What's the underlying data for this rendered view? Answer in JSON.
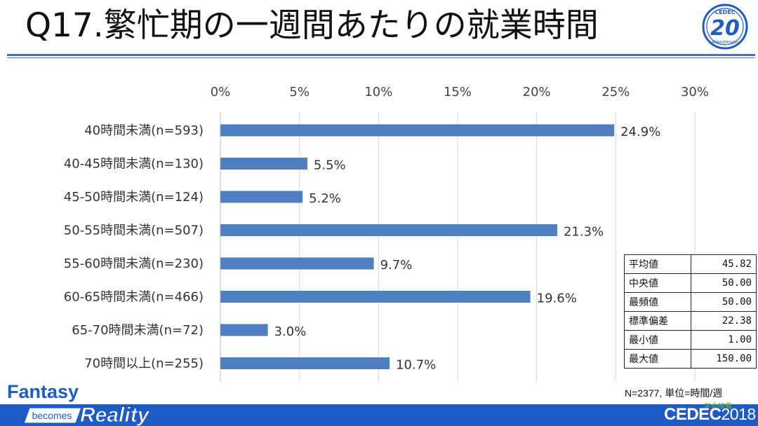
{
  "slide": {
    "title": "Q17.繁忙期の一週間あたりの就業時間",
    "logo20": {
      "top_text": "CEDEC",
      "number": "20",
      "caption": "ANNIVERSARY"
    },
    "footer_left": {
      "line1": "Fantasy",
      "line2": "becomes",
      "line3": "Reality"
    },
    "footer_right": {
      "name": "CEDEC",
      "year": "2018"
    },
    "sponsor": "学会推薦",
    "note": "N=2377, 単位=時間/週",
    "colors": {
      "bar": "#4f7fc0",
      "band": "#1f5bc4",
      "rule": "#4a6fb0"
    }
  },
  "stats": [
    {
      "label": "平均値",
      "value": "45.82"
    },
    {
      "label": "中央値",
      "value": "50.00"
    },
    {
      "label": "最頻値",
      "value": "50.00"
    },
    {
      "label": "標準偏差",
      "value": "22.38"
    },
    {
      "label": "最小値",
      "value": "1.00"
    },
    {
      "label": "最大値",
      "value": "150.00"
    }
  ],
  "chart_data": {
    "type": "bar",
    "orientation": "horizontal",
    "title": "Q17.繁忙期の一週間あたりの就業時間",
    "xlabel": "",
    "ylabel": "",
    "xlim": [
      0,
      30
    ],
    "x_ticks": [
      "0%",
      "5%",
      "10%",
      "15%",
      "20%",
      "25%",
      "30%"
    ],
    "x_tick_values": [
      0,
      5,
      10,
      15,
      20,
      25,
      30
    ],
    "x_axis_position": "top",
    "grid": true,
    "categories": [
      "40時間未満(n=593)",
      "40-45時間未満(n=130)",
      "45-50時間未満(n=124)",
      "50-55時間未満(n=507)",
      "55-60時間未満(n=230)",
      "60-65時間未満(n=466)",
      "65-70時間未満(n=72)",
      "70時間以上(n=255)"
    ],
    "values": [
      24.9,
      5.5,
      5.2,
      21.3,
      9.7,
      19.6,
      3.0,
      10.7
    ],
    "value_labels": [
      "24.9%",
      "5.5%",
      "5.2%",
      "21.3%",
      "9.7%",
      "19.6%",
      "3.0%",
      "10.7%"
    ]
  }
}
